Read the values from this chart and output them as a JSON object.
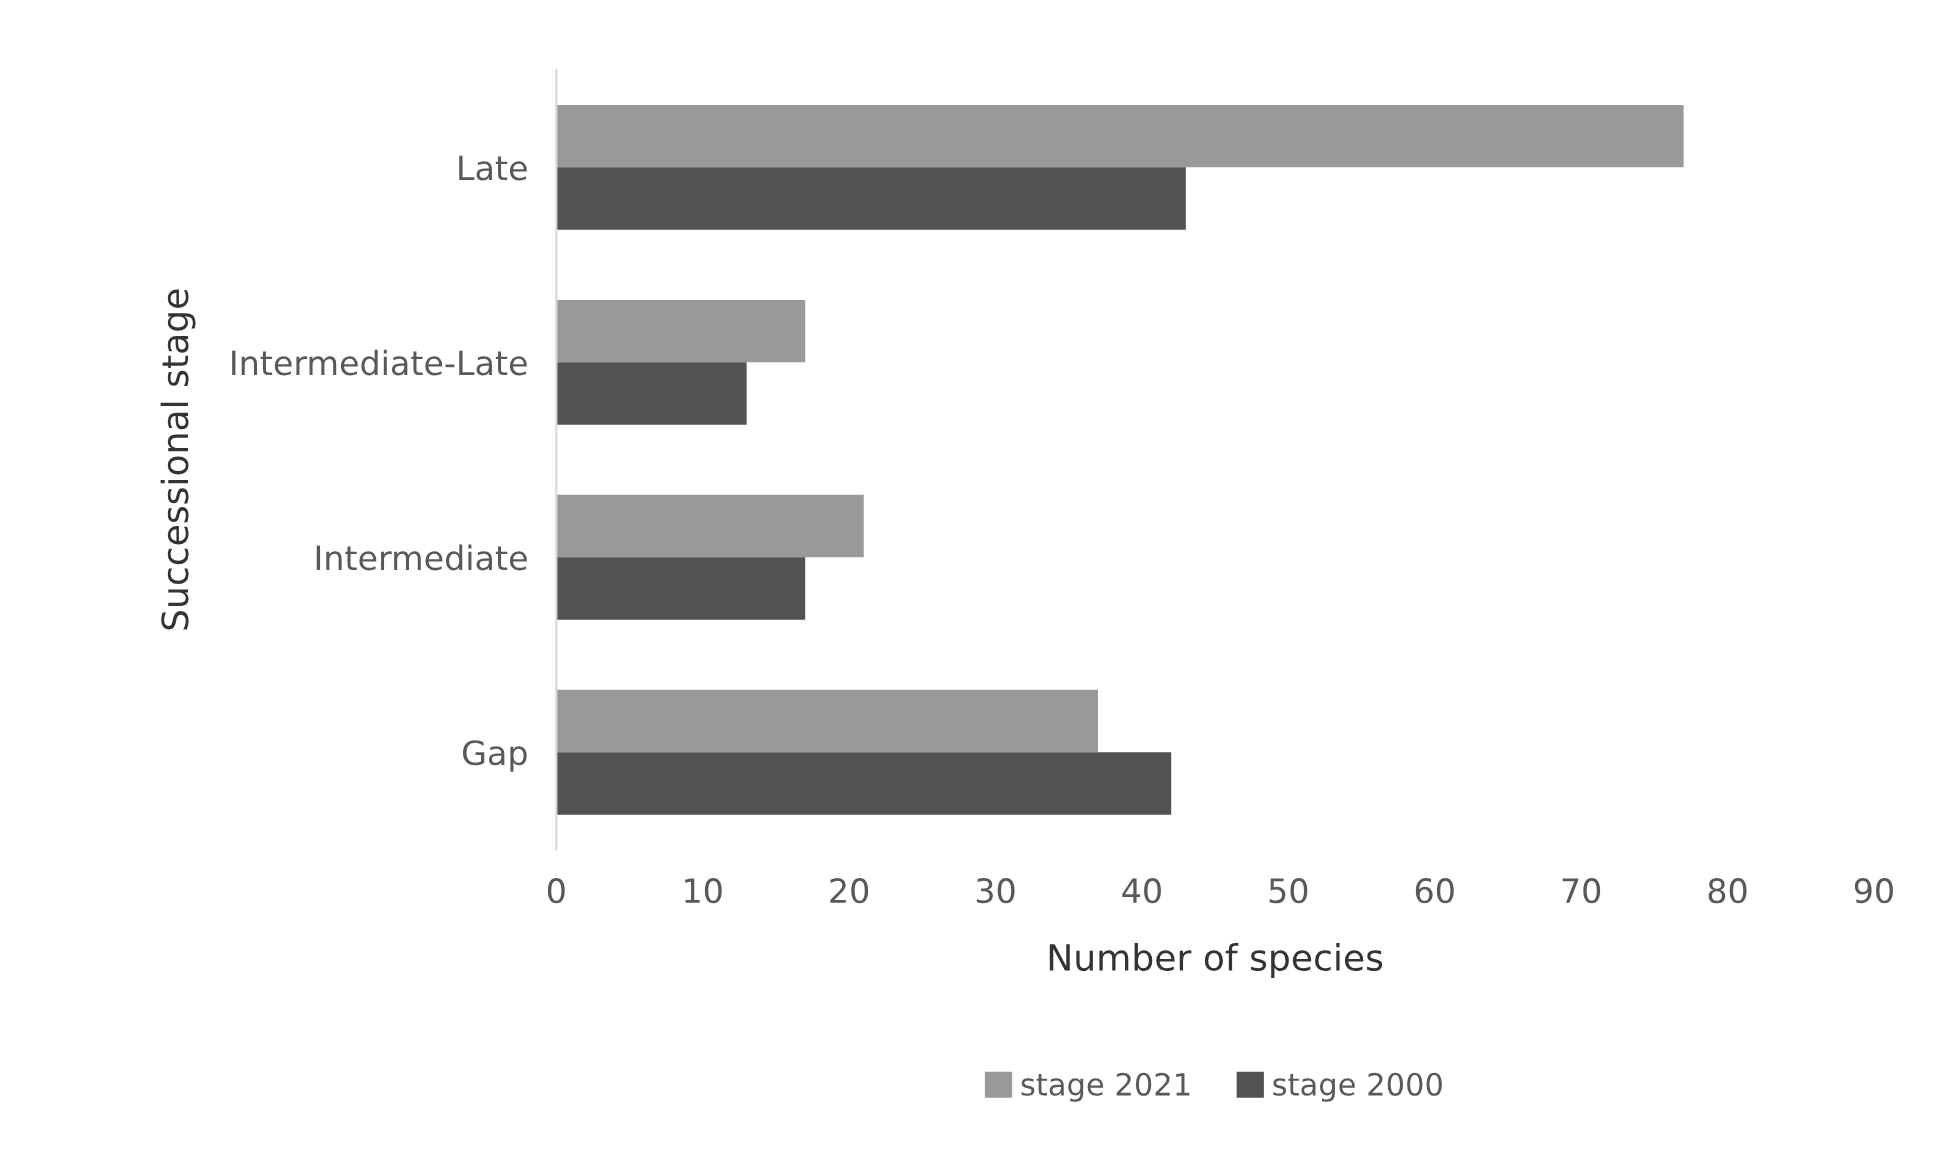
{
  "chart_data": {
    "type": "bar",
    "orientation": "horizontal",
    "xlabel": "Number of species",
    "ylabel": "Successional stage",
    "categories": [
      "Late",
      "Intermediate-Late",
      "Intermediate",
      "Gap"
    ],
    "series": [
      {
        "name": "stage 2021",
        "color": "#999999",
        "values": [
          77,
          17,
          21,
          37
        ]
      },
      {
        "name": "stage 2000",
        "color": "#525252",
        "values": [
          43,
          13,
          17,
          42
        ]
      }
    ],
    "xlim": [
      0,
      90
    ],
    "xticks": [
      0,
      10,
      20,
      30,
      40,
      50,
      60,
      70,
      80,
      90
    ],
    "grid": false,
    "legend": "bottom"
  }
}
